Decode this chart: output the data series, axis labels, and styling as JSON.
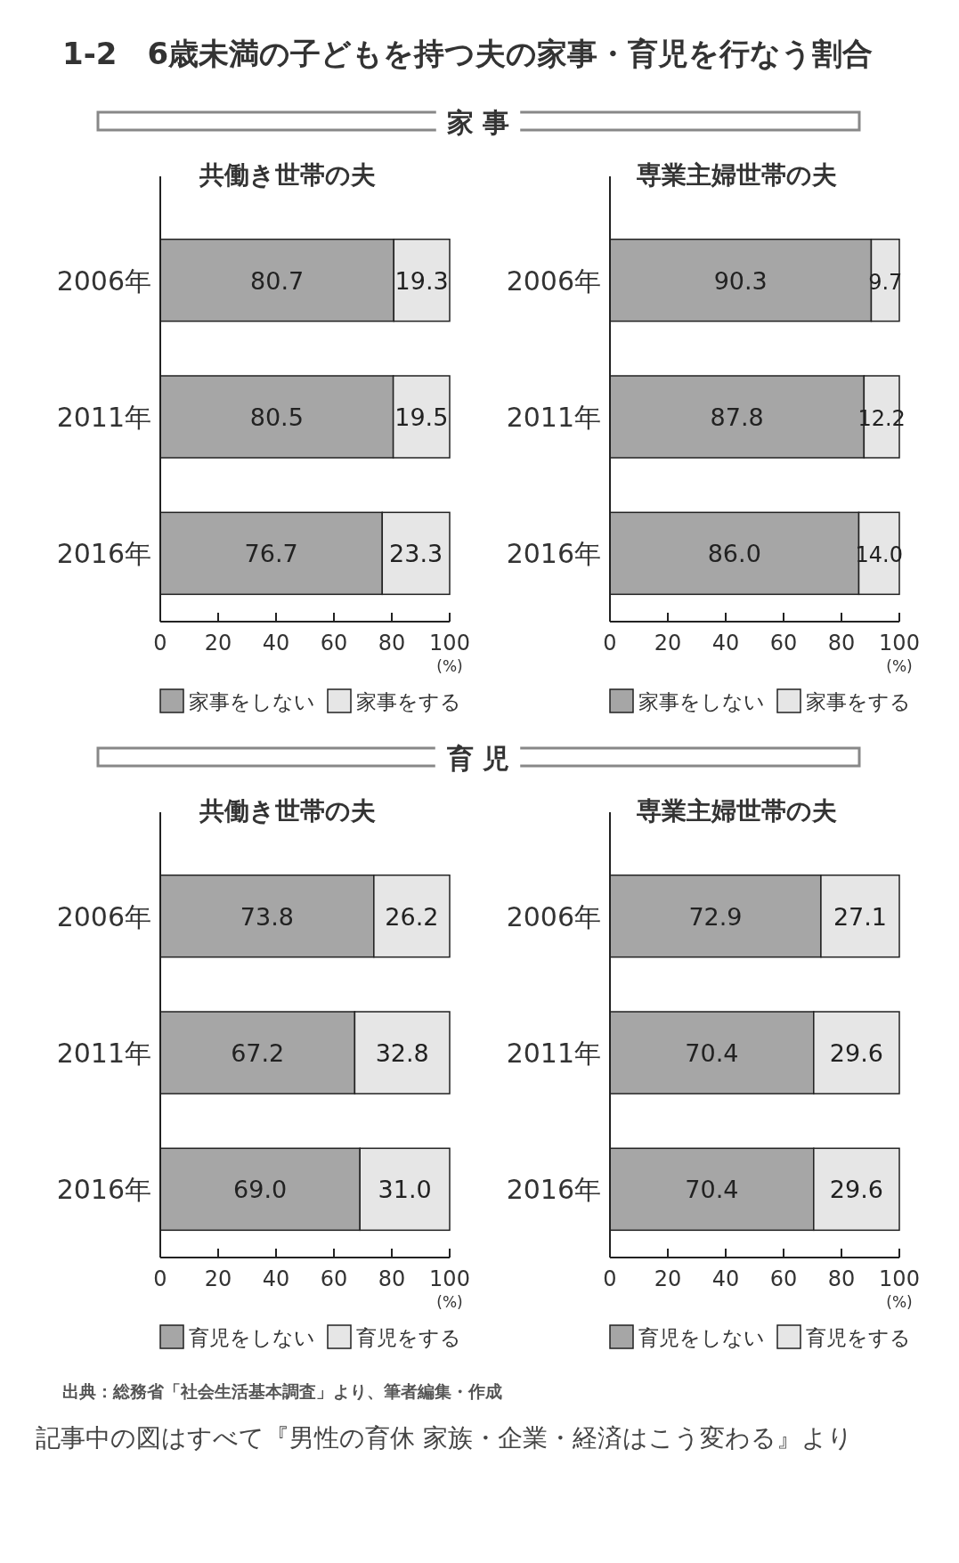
{
  "chart_data": [
    {
      "type": "other",
      "title": "1-2　6歳未満の子どもを持つ夫の家事・育児を行なう割合"
    },
    {
      "type": "other",
      "title": "家 事"
    },
    {
      "type": "bar",
      "title": "共働き世帯の夫",
      "orientation": "horizontal",
      "stacked": true,
      "categories": [
        "2006年",
        "2011年",
        "2016年"
      ],
      "xlim": [
        0,
        100
      ],
      "xticks": [
        0,
        20,
        40,
        60,
        80,
        100
      ],
      "xlabel": "(%)",
      "legend": "bottom",
      "grid": false,
      "series": [
        {
          "name": "家事をしない",
          "color": "#a6a6a6",
          "values": [
            80.7,
            80.5,
            76.7
          ],
          "value_labels": [
            "80.7",
            "80.5",
            "76.7"
          ]
        },
        {
          "name": "家事をする",
          "color": "#e6e6e6",
          "values": [
            19.3,
            19.5,
            23.3
          ],
          "value_labels": [
            "19.3",
            "19.5",
            "23.3"
          ]
        }
      ]
    },
    {
      "type": "bar",
      "title": "専業主婦世帯の夫",
      "orientation": "horizontal",
      "stacked": true,
      "categories": [
        "2006年",
        "2011年",
        "2016年"
      ],
      "xlim": [
        0,
        100
      ],
      "xticks": [
        0,
        20,
        40,
        60,
        80,
        100
      ],
      "xlabel": "(%)",
      "legend": "bottom",
      "grid": false,
      "series": [
        {
          "name": "家事をしない",
          "color": "#a6a6a6",
          "values": [
            90.3,
            87.8,
            86.0
          ],
          "value_labels": [
            "90.3",
            "87.8",
            "86.0"
          ]
        },
        {
          "name": "家事をする",
          "color": "#e6e6e6",
          "values": [
            9.7,
            12.2,
            14.0
          ],
          "value_labels": [
            "9.7",
            "12.2",
            "14.0"
          ]
        }
      ]
    },
    {
      "type": "other",
      "title": "育 児"
    },
    {
      "type": "bar",
      "title": "共働き世帯の夫",
      "orientation": "horizontal",
      "stacked": true,
      "categories": [
        "2006年",
        "2011年",
        "2016年"
      ],
      "xlim": [
        0,
        100
      ],
      "xticks": [
        0,
        20,
        40,
        60,
        80,
        100
      ],
      "xlabel": "(%)",
      "legend": "bottom",
      "grid": false,
      "series": [
        {
          "name": "育児をしない",
          "color": "#a6a6a6",
          "values": [
            73.8,
            67.2,
            69.0
          ],
          "value_labels": [
            "73.8",
            "67.2",
            "69.0"
          ]
        },
        {
          "name": "育児をする",
          "color": "#e6e6e6",
          "values": [
            26.2,
            32.8,
            31.0
          ],
          "value_labels": [
            "26.2",
            "32.8",
            "31.0"
          ]
        }
      ]
    },
    {
      "type": "bar",
      "title": "専業主婦世帯の夫",
      "orientation": "horizontal",
      "stacked": true,
      "categories": [
        "2006年",
        "2011年",
        "2016年"
      ],
      "xlim": [
        0,
        100
      ],
      "xticks": [
        0,
        20,
        40,
        60,
        80,
        100
      ],
      "xlabel": "(%)",
      "legend": "bottom",
      "grid": false,
      "series": [
        {
          "name": "育児をしない",
          "color": "#a6a6a6",
          "values": [
            72.9,
            70.4,
            70.4
          ],
          "value_labels": [
            "72.9",
            "70.4",
            "70.4"
          ]
        },
        {
          "name": "育児をする",
          "color": "#e6e6e6",
          "values": [
            27.1,
            29.6,
            29.6
          ],
          "value_labels": [
            "27.1",
            "29.6",
            "29.6"
          ]
        }
      ]
    },
    {
      "type": "other",
      "annotations": [
        "出典：総務省「社会生活基本調査」より、筆者編集・作成",
        "記事中の図はすべて『男性の育休 家族・企業・経済はこう変わる』より"
      ]
    }
  ]
}
